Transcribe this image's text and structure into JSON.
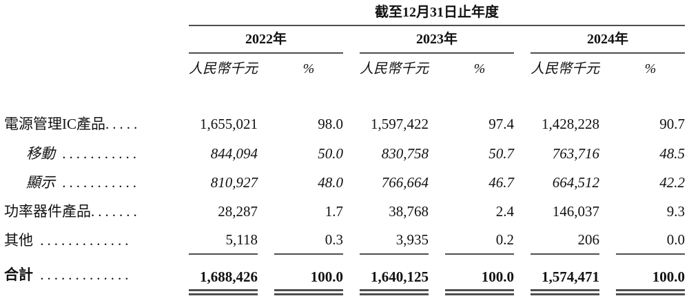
{
  "table": {
    "title": "截至12月31日止年度",
    "unit_header": "人民幣千元",
    "pct_header": "%",
    "years": [
      {
        "label": "2022年"
      },
      {
        "label": "2023年"
      },
      {
        "label": "2024年"
      }
    ],
    "rows": [
      {
        "label": "電源管理IC產品",
        "dots": ".....",
        "emphasis": "normal",
        "values": [
          "1,655,021",
          "98.0",
          "1,597,422",
          "97.4",
          "1,428,228",
          "90.7"
        ]
      },
      {
        "label": "移動",
        "dots": " ...........",
        "emphasis": "italic-indented",
        "values": [
          "844,094",
          "50.0",
          "830,758",
          "50.7",
          "763,716",
          "48.5"
        ]
      },
      {
        "label": "顯示",
        "dots": " ...........",
        "emphasis": "italic-indented",
        "values": [
          "810,927",
          "48.0",
          "766,664",
          "46.7",
          "664,512",
          "42.2"
        ]
      },
      {
        "label": "功率器件產品",
        "dots": ".......",
        "emphasis": "normal",
        "values": [
          "28,287",
          "1.7",
          "38,768",
          "2.4",
          "146,037",
          "9.3"
        ]
      },
      {
        "label": "其他",
        "dots": " .............",
        "emphasis": "normal",
        "values": [
          "5,118",
          "0.3",
          "3,935",
          "0.2",
          "206",
          "0.0"
        ]
      }
    ],
    "total": {
      "label": "合計",
      "dots": " .............",
      "values": [
        "1,688,426",
        "100.0",
        "1,640,125",
        "100.0",
        "1,574,471",
        "100.0"
      ]
    },
    "colors": {
      "rule": "#4d4d4d",
      "text": "#111111"
    }
  }
}
